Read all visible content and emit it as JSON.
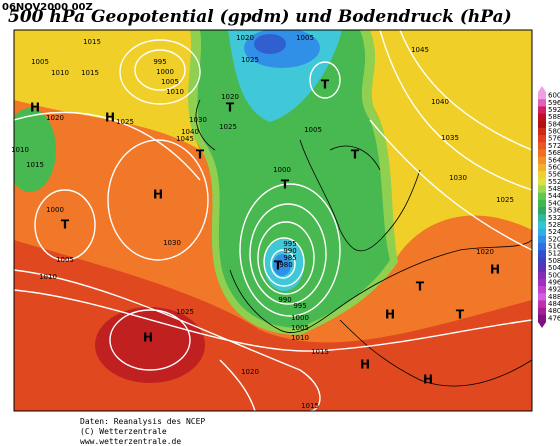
{
  "header": {
    "date": "06NOV2000 00Z",
    "title": "500 hPa Geopotential (gpdm) und Bodendruck (hPa)"
  },
  "legend": {
    "levels": [
      600,
      596,
      592,
      588,
      584,
      580,
      576,
      572,
      568,
      564,
      560,
      556,
      552,
      548,
      544,
      540,
      536,
      532,
      528,
      524,
      520,
      516,
      512,
      508,
      504,
      500,
      496,
      492,
      488,
      484,
      480,
      476
    ],
    "colors": [
      "#f0a0e0",
      "#e060c0",
      "#d02060",
      "#c01020",
      "#b01010",
      "#d02818",
      "#e04020",
      "#e85820",
      "#f07020",
      "#f09028",
      "#f0b030",
      "#f0d030",
      "#e0e040",
      "#a0d850",
      "#60c850",
      "#40b850",
      "#30a860",
      "#30b8a0",
      "#30c8d0",
      "#30b0e8",
      "#3090e8",
      "#3070e0",
      "#3050d0",
      "#4040c0",
      "#6030b0",
      "#8030b0",
      "#a030c0",
      "#c040d0",
      "#d060e0",
      "#c030b0",
      "#a02090",
      "#801080"
    ]
  },
  "map": {
    "labels": [
      "1015",
      "1005",
      "1010",
      "1015",
      "H",
      "1020",
      "H",
      "1025",
      "1010",
      "1015",
      "1000",
      "T",
      "1005",
      "1010",
      "H",
      "1030",
      "1025",
      "H",
      "995",
      "1000",
      "1005",
      "1010",
      "1020",
      "1025",
      "1025",
      "T",
      "1030",
      "1040",
      "1045",
      "T",
      "1020",
      "1005",
      "T",
      "1005",
      "1000",
      "T",
      "995",
      "990",
      "985",
      "980",
      "T",
      "990",
      "995",
      "1000",
      "1005",
      "1010",
      "1015",
      "1040",
      "1035",
      "T",
      "1030",
      "1025",
      "1020",
      "H",
      "T",
      "H",
      "T",
      "H",
      "H",
      "1045",
      "1020",
      "1015"
    ]
  },
  "footer": {
    "lines": [
      "Daten: Reanalysis des NCEP",
      "(C) Wetterzentrale",
      "www.wetterzentrale.de"
    ]
  }
}
